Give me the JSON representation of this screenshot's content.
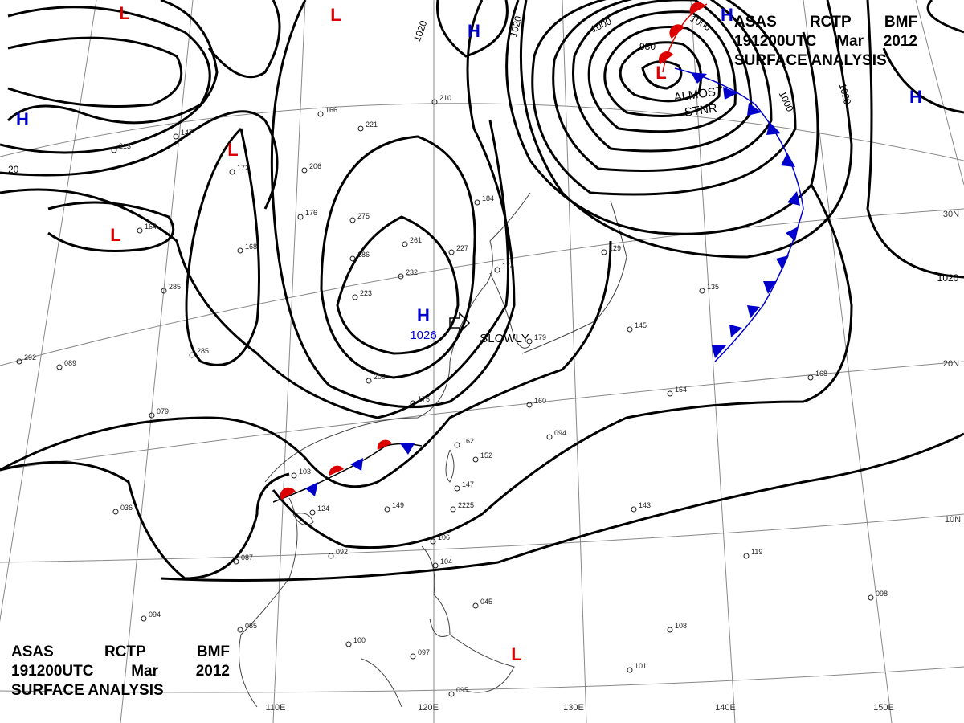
{
  "header": {
    "line1": [
      "ASAS",
      "RCTP",
      "BMF"
    ],
    "line2": [
      "191200UTC",
      "Mar",
      "2012"
    ],
    "line3": "SURFACE ANALYSIS"
  },
  "pressure_centers": [
    {
      "type": "H",
      "color": "#0000cc",
      "value": "1026",
      "note": "SLOWLY"
    },
    {
      "type": "H",
      "color": "#0000cc"
    },
    {
      "type": "H",
      "color": "#0000cc"
    },
    {
      "type": "H",
      "color": "#0000cc"
    },
    {
      "type": "H",
      "color": "#0000cc"
    },
    {
      "type": "L",
      "color": "#dd0000"
    },
    {
      "type": "L",
      "color": "#dd0000"
    },
    {
      "type": "L",
      "color": "#dd0000"
    },
    {
      "type": "L",
      "color": "#dd0000"
    },
    {
      "type": "L",
      "color": "#dd0000"
    },
    {
      "type": "L",
      "color": "#dd0000"
    }
  ],
  "isobar_labels": [
    "1020",
    "1020",
    "1000",
    "980",
    "1000",
    "1020",
    "1020",
    "1000",
    "20"
  ],
  "front_annotation": [
    "ALMOST",
    "STNR"
  ],
  "longitude_labels": [
    "110E",
    "120E",
    "130E",
    "140E",
    "150E"
  ],
  "latitude_labels": [
    "30N",
    "20N",
    "10N"
  ],
  "station_values": [
    "1026",
    "089",
    "079",
    "036",
    "087",
    "094",
    "085",
    "100",
    "097",
    "095",
    "101",
    "108",
    "098",
    "119",
    "143",
    "154",
    "168",
    "135",
    "145",
    "129",
    "174",
    "184",
    "175",
    "162",
    "152",
    "147",
    "149",
    "124",
    "103",
    "092",
    "106",
    "104",
    "045",
    "094",
    "160",
    "179",
    "200",
    "232",
    "223",
    "186",
    "206",
    "176",
    "275",
    "261",
    "227",
    "221",
    "210",
    "166",
    "147",
    "213",
    "172",
    "168",
    "164",
    "285",
    "285",
    "292",
    "2225"
  ]
}
